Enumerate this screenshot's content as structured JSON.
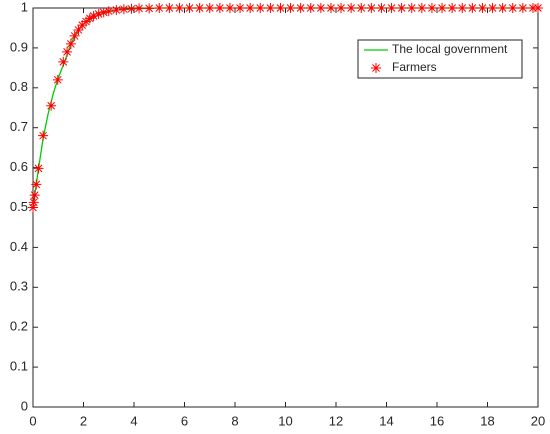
{
  "chart_data": {
    "type": "line-scatter",
    "xlim": [
      0,
      20
    ],
    "xticks": [
      0,
      2,
      4,
      6,
      8,
      10,
      12,
      14,
      16,
      18,
      20
    ],
    "ylim": [
      0,
      1
    ],
    "yticks": [
      0,
      0.1,
      0.2,
      0.3,
      0.4,
      0.5,
      0.6,
      0.7,
      0.8,
      0.9,
      1
    ],
    "legend": "northeast",
    "box": true,
    "series": [
      {
        "name": "The local government",
        "color": "#00cc00",
        "mark": "line",
        "x": [
          0,
          0.2,
          0.4,
          0.6,
          0.8,
          1,
          1.25,
          1.5,
          1.75,
          2,
          2.5,
          3,
          3.5,
          4,
          5,
          6,
          8,
          20
        ],
        "values": [
          0.5,
          0.59,
          0.673,
          0.735,
          0.785,
          0.825,
          0.865,
          0.91,
          0.94,
          0.96,
          0.98,
          0.992,
          0.996,
          0.998,
          1,
          1,
          1,
          1
        ]
      },
      {
        "name": "Farmers",
        "color": "#ff0000",
        "mark": "asterisk",
        "x": [
          0,
          0.03,
          0.07,
          0.13,
          0.22,
          0.4,
          0.72,
          0.98,
          1.2,
          1.35,
          1.5,
          1.65,
          1.8,
          1.95,
          2.1,
          2.25,
          2.4,
          2.6,
          2.8,
          3.0,
          3.3,
          3.6,
          3.9,
          4.2,
          4.6,
          5,
          5.4,
          5.8,
          6.2,
          6.6,
          7,
          7.4,
          7.8,
          8.2,
          8.6,
          9,
          9.4,
          9.8,
          10.2,
          10.6,
          11,
          11.4,
          11.8,
          12.2,
          12.6,
          13,
          13.4,
          13.8,
          14.2,
          14.6,
          15,
          15.4,
          15.8,
          16.2,
          16.6,
          17,
          17.4,
          17.8,
          18.2,
          18.6,
          19,
          19.4,
          19.8,
          20
        ],
        "values": [
          0.5,
          0.513,
          0.531,
          0.558,
          0.598,
          0.68,
          0.755,
          0.82,
          0.865,
          0.89,
          0.91,
          0.93,
          0.945,
          0.957,
          0.966,
          0.974,
          0.98,
          0.985,
          0.989,
          0.992,
          0.995,
          0.997,
          0.998,
          0.999,
          0.999,
          1,
          1,
          1,
          1,
          1,
          1,
          1,
          1,
          1,
          1,
          1,
          1,
          1,
          1,
          1,
          1,
          1,
          1,
          1,
          1,
          1,
          1,
          1,
          1,
          1,
          1,
          1,
          1,
          1,
          1,
          1,
          1,
          1,
          1,
          1,
          1,
          1,
          1,
          1
        ]
      }
    ]
  }
}
